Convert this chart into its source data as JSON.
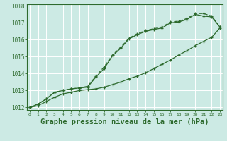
{
  "title": "Graphe pression niveau de la mer (hPa)",
  "x_values": [
    0,
    1,
    2,
    3,
    4,
    5,
    6,
    7,
    8,
    9,
    10,
    11,
    12,
    13,
    14,
    15,
    16,
    17,
    18,
    19,
    20,
    21,
    22,
    23
  ],
  "line1": [
    1012.0,
    1012.2,
    1012.5,
    1012.9,
    1013.0,
    1013.1,
    1013.15,
    1013.2,
    1013.8,
    1014.3,
    1015.05,
    1015.5,
    1016.05,
    1016.3,
    1016.5,
    1016.6,
    1016.7,
    1017.0,
    1017.05,
    1017.2,
    1017.5,
    1017.4,
    1017.35,
    1016.75
  ],
  "line2": [
    1012.0,
    1012.2,
    1012.5,
    1012.9,
    1013.0,
    1013.1,
    1013.15,
    1013.25,
    1013.85,
    1014.4,
    1015.1,
    1015.55,
    1016.1,
    1016.35,
    1016.55,
    1016.65,
    1016.75,
    1017.05,
    1017.1,
    1017.25,
    1017.55,
    1017.55,
    1017.4,
    1016.75
  ],
  "line3": [
    1012.0,
    1012.1,
    1012.35,
    1012.6,
    1012.8,
    1012.9,
    1013.0,
    1013.05,
    1013.1,
    1013.2,
    1013.35,
    1013.5,
    1013.7,
    1013.85,
    1014.05,
    1014.3,
    1014.55,
    1014.8,
    1015.1,
    1015.35,
    1015.65,
    1015.9,
    1016.15,
    1016.7
  ],
  "ylim_min": 1012.0,
  "ylim_max": 1018.0,
  "yticks": [
    1012,
    1013,
    1014,
    1015,
    1016,
    1017,
    1018
  ],
  "line_color": "#2d6a2d",
  "bg_color": "#cceae4",
  "grid_color": "#b0d8d0",
  "title_fontsize": 7.5
}
